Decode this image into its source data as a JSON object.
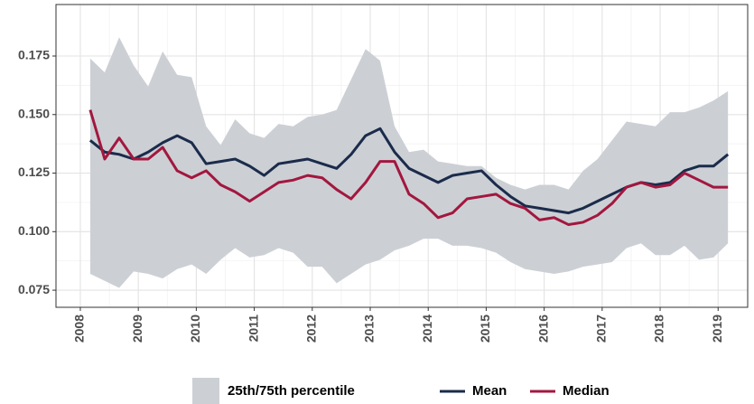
{
  "chart_data": {
    "type": "line",
    "x": [
      2008.17,
      2008.42,
      2008.67,
      2008.92,
      2009.17,
      2009.42,
      2009.67,
      2009.92,
      2010.17,
      2010.42,
      2010.67,
      2010.92,
      2011.17,
      2011.42,
      2011.67,
      2011.92,
      2012.17,
      2012.42,
      2012.67,
      2012.92,
      2013.17,
      2013.42,
      2013.67,
      2013.92,
      2014.17,
      2014.42,
      2014.67,
      2014.92,
      2015.17,
      2015.42,
      2015.67,
      2015.92,
      2016.17,
      2016.42,
      2016.67,
      2016.92,
      2017.17,
      2017.42,
      2017.67,
      2017.92,
      2018.17,
      2018.42,
      2018.67,
      2018.92,
      2019.17
    ],
    "band": {
      "name": "25th/75th percentile",
      "color": "#ccd0d5",
      "upper": [
        0.174,
        0.168,
        0.183,
        0.171,
        0.162,
        0.177,
        0.167,
        0.166,
        0.145,
        0.137,
        0.148,
        0.142,
        0.14,
        0.146,
        0.145,
        0.149,
        0.15,
        0.152,
        0.165,
        0.178,
        0.173,
        0.145,
        0.134,
        0.135,
        0.13,
        0.129,
        0.128,
        0.128,
        0.123,
        0.12,
        0.118,
        0.12,
        0.12,
        0.118,
        0.126,
        0.131,
        0.139,
        0.147,
        0.146,
        0.145,
        0.151,
        0.151,
        0.153,
        0.156,
        0.16
      ],
      "lower": [
        0.082,
        0.079,
        0.076,
        0.083,
        0.082,
        0.08,
        0.084,
        0.086,
        0.082,
        0.088,
        0.093,
        0.089,
        0.09,
        0.093,
        0.091,
        0.085,
        0.085,
        0.078,
        0.082,
        0.086,
        0.088,
        0.092,
        0.094,
        0.097,
        0.097,
        0.094,
        0.094,
        0.093,
        0.091,
        0.087,
        0.084,
        0.083,
        0.082,
        0.083,
        0.085,
        0.086,
        0.087,
        0.093,
        0.095,
        0.09,
        0.09,
        0.094,
        0.088,
        0.089,
        0.095
      ]
    },
    "series": [
      {
        "name": "Mean",
        "color": "#1b2b4b",
        "values": [
          0.139,
          0.134,
          0.133,
          0.131,
          0.134,
          0.138,
          0.141,
          0.138,
          0.129,
          0.13,
          0.131,
          0.128,
          0.124,
          0.129,
          0.13,
          0.131,
          0.129,
          0.127,
          0.133,
          0.141,
          0.144,
          0.134,
          0.127,
          0.124,
          0.121,
          0.124,
          0.125,
          0.126,
          0.12,
          0.115,
          0.111,
          0.11,
          0.109,
          0.108,
          0.11,
          0.113,
          0.116,
          0.119,
          0.121,
          0.12,
          0.121,
          0.126,
          0.128,
          0.128,
          0.133
        ]
      },
      {
        "name": "Median",
        "color": "#a3173f",
        "values": [
          0.152,
          0.131,
          0.14,
          0.131,
          0.131,
          0.136,
          0.126,
          0.123,
          0.126,
          0.12,
          0.117,
          0.113,
          0.117,
          0.121,
          0.122,
          0.124,
          0.123,
          0.118,
          0.114,
          0.121,
          0.13,
          0.13,
          0.116,
          0.112,
          0.106,
          0.108,
          0.114,
          0.115,
          0.116,
          0.112,
          0.11,
          0.105,
          0.106,
          0.103,
          0.104,
          0.107,
          0.112,
          0.119,
          0.121,
          0.119,
          0.12,
          0.125,
          0.122,
          0.119,
          0.119
        ]
      }
    ],
    "xlim": [
      2007.58,
      2019.51
    ],
    "xticks": [
      2008,
      2009,
      2010,
      2011,
      2012,
      2013,
      2014,
      2015,
      2016,
      2017,
      2018,
      2019
    ],
    "ylim": [
      0.0677,
      0.197
    ],
    "yticks": [
      0.075,
      {
        "value": 0.1,
        "label": "0.100"
      },
      0.125,
      {
        "value": 0.15,
        "label": "0.150"
      },
      0.175
    ],
    "grid": true,
    "legend": "bottom"
  }
}
